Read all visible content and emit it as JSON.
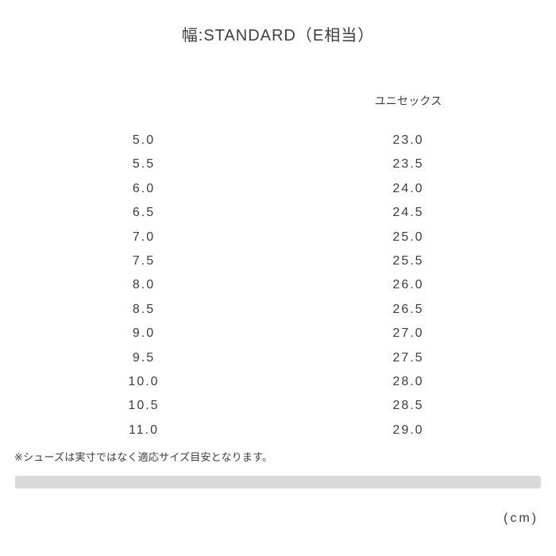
{
  "chart_data": {
    "type": "table",
    "title": "幅:STANDARD（E相当）",
    "columns": [
      "",
      "ユニセックス"
    ],
    "rows": [
      [
        "5.0",
        "23.0"
      ],
      [
        "5.5",
        "23.5"
      ],
      [
        "6.0",
        "24.0"
      ],
      [
        "6.5",
        "24.5"
      ],
      [
        "7.0",
        "25.0"
      ],
      [
        "7.5",
        "25.5"
      ],
      [
        "8.0",
        "26.0"
      ],
      [
        "8.5",
        "26.5"
      ],
      [
        "9.0",
        "27.0"
      ],
      [
        "9.5",
        "27.5"
      ],
      [
        "10.0",
        "28.0"
      ],
      [
        "10.5",
        "28.5"
      ],
      [
        "11.0",
        "29.0"
      ]
    ],
    "unit": "(cm)",
    "note": "※シューズは実寸ではなく適応サイズ目安となります。",
    "layout": {
      "grid": "off",
      "header_position": "top-of-second-column",
      "note_position": "bottom-left",
      "unit_position": "bottom-right"
    }
  },
  "colors": {
    "text": "#3d3d3d",
    "scrollbar": "#d9d9d9",
    "background": "#ffffff"
  }
}
